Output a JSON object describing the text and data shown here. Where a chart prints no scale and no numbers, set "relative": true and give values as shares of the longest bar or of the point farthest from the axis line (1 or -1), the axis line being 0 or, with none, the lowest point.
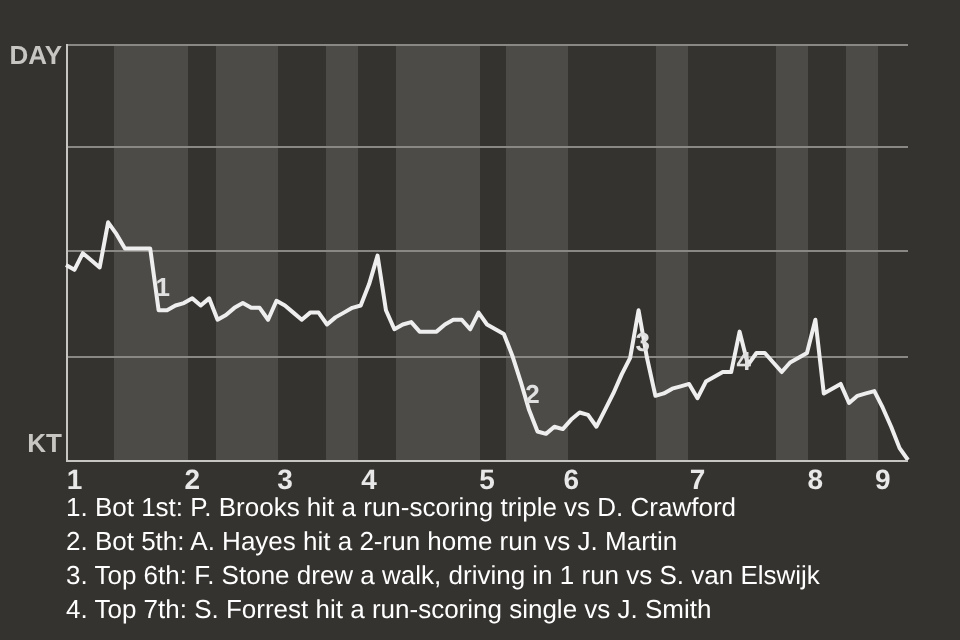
{
  "chart_data": {
    "type": "line",
    "relative": true,
    "categories": [
      null,
      "1",
      null,
      null,
      null,
      null,
      null,
      null,
      null,
      null,
      null,
      null,
      null,
      null,
      null,
      "2",
      null,
      null,
      null,
      null,
      null,
      null,
      null,
      null,
      null,
      null,
      "3",
      null,
      null,
      null,
      null,
      null,
      null,
      null,
      null,
      null,
      "4",
      null,
      null,
      null,
      null,
      null,
      null,
      null,
      null,
      null,
      null,
      null,
      null,
      null,
      "5",
      null,
      null,
      null,
      null,
      null,
      null,
      null,
      null,
      null,
      "6",
      null,
      null,
      null,
      null,
      null,
      null,
      null,
      null,
      null,
      null,
      null,
      null,
      null,
      null,
      "7",
      null,
      null,
      null,
      null,
      null,
      null,
      null,
      null,
      null,
      null,
      null,
      null,
      null,
      "8",
      null,
      null,
      null,
      null,
      null,
      null,
      null,
      "9",
      null,
      null,
      null
    ],
    "series": [
      {
        "color": "#eeeeee",
        "values": [
          0.82,
          0.8,
          0.87,
          0.84,
          0.81,
          1,
          0.95,
          0.89,
          0.89,
          0.89,
          0.89,
          0.63,
          0.63,
          0.65,
          0.66,
          0.68,
          0.65,
          0.68,
          0.59,
          0.61,
          0.64,
          0.66,
          0.64,
          0.64,
          0.59,
          0.67,
          0.65,
          0.62,
          0.59,
          0.62,
          0.62,
          0.57,
          0.6,
          0.62,
          0.64,
          0.65,
          0.74,
          0.86,
          0.63,
          0.55,
          0.57,
          0.58,
          0.54,
          0.54,
          0.54,
          0.57,
          0.59,
          0.59,
          0.55,
          0.62,
          0.57,
          0.55,
          0.53,
          0.44,
          0.33,
          0.21,
          0.12,
          0.11,
          0.14,
          0.13,
          0.17,
          0.2,
          0.19,
          0.14,
          0.21,
          0.28,
          0.36,
          0.43,
          0.63,
          0.43,
          0.27,
          0.28,
          0.3,
          0.31,
          0.32,
          0.26,
          0.33,
          0.35,
          0.37,
          0.37,
          0.54,
          0.4,
          0.45,
          0.45,
          0.41,
          0.37,
          0.41,
          0.43,
          0.45,
          0.59,
          0.28,
          0.3,
          0.32,
          0.24,
          0.27,
          0.28,
          0.29,
          0.22,
          0.14,
          0.05,
          0
        ]
      }
    ],
    "ref_lines": [
      {
        "axis": "y",
        "value": 0.44,
        "color": "#8a8884"
      },
      {
        "axis": "y",
        "value": 0.88,
        "color": "#8a8884"
      },
      {
        "axis": "y",
        "value": 1.32,
        "color": "#8a8884"
      },
      {
        "axis": "y",
        "value": 1.75,
        "color": "#8a8884"
      }
    ],
    "annotations": [
      "DAY",
      "KT",
      {
        "text": "1",
        "y": 0.72
      },
      {
        "text": "2",
        "y": 0.27
      },
      {
        "text": "3",
        "y": 0.49
      },
      {
        "text": "4",
        "y": 0.41
      },
      "1. Bot 1st: P. Brooks hit a run-scoring triple vs D. Crawford",
      "2. Bot 5th: A. Hayes hit a 2-run home run vs J. Martin",
      "3. Top 6th: F. Stone drew a walk, driving in 1 run vs S. van Elswijk",
      "4. Top 7th: S. Forrest hit a run-scoring single vs J. Smith"
    ],
    "legend": false,
    "marker": "none",
    "line_style": "solid"
  }
}
